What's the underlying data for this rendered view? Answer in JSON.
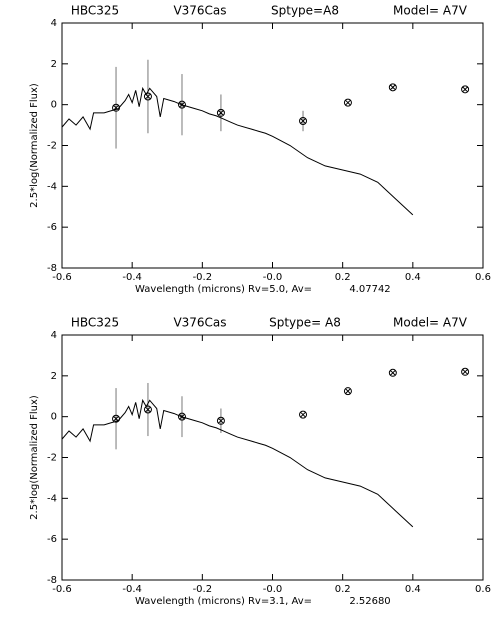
{
  "chart_data": [
    {
      "type": "scatter",
      "header": [
        "HBC325",
        "V376Cas",
        "Sptype=A8",
        "Model= A7V"
      ],
      "x_label": "Wavelength (microns)",
      "x_note": "Rv=5.0, Av=",
      "av": "4.07742",
      "y_label": "2.5*log(Normalized Flux)",
      "xlim": [
        -0.6,
        0.6
      ],
      "ylim": [
        -8,
        4
      ],
      "xticks": [
        -0.6,
        -0.4,
        -0.2,
        {
          "value": 0,
          "label": "-0.0"
        },
        0.2,
        0.4,
        0.6
      ],
      "yticks": [
        -8,
        -6,
        -4,
        -2,
        0,
        2,
        4
      ],
      "x": [
        -0.446,
        -0.355,
        -0.258,
        -0.147,
        0.087,
        0.215,
        0.343,
        0.549
      ],
      "values": [
        -0.15,
        0.4,
        0.0,
        -0.4,
        -0.8,
        0.1,
        0.85,
        0.75
      ],
      "yerr": [
        2.0,
        1.8,
        1.5,
        0.9,
        0.5,
        null,
        null,
        null
      ],
      "model": {
        "x": [
          -0.6,
          -0.58,
          -0.56,
          -0.54,
          -0.52,
          -0.51,
          -0.48,
          -0.46,
          -0.44,
          -0.42,
          -0.41,
          -0.4,
          -0.39,
          -0.38,
          -0.37,
          -0.36,
          -0.35,
          -0.34,
          -0.33,
          -0.32,
          -0.31,
          -0.28,
          -0.26,
          -0.22,
          -0.2,
          -0.18,
          -0.16,
          -0.14,
          -0.12,
          -0.1,
          -0.06,
          -0.04,
          -0.02,
          0.0,
          0.05,
          0.1,
          0.15,
          0.2,
          0.25,
          0.3,
          0.35,
          0.4
        ],
        "values": [
          -1.1,
          -0.7,
          -1.0,
          -0.6,
          -1.2,
          -0.4,
          -0.4,
          -0.3,
          -0.2,
          0.2,
          0.5,
          0.1,
          0.7,
          -0.1,
          0.8,
          0.5,
          0.8,
          0.6,
          0.4,
          -0.6,
          0.3,
          0.15,
          0.0,
          -0.2,
          -0.3,
          -0.45,
          -0.55,
          -0.7,
          -0.85,
          -1.0,
          -1.2,
          -1.3,
          -1.4,
          -1.55,
          -2.0,
          -2.6,
          -3.0,
          -3.2,
          -3.4,
          -3.8,
          -4.6,
          -5.4
        ]
      }
    },
    {
      "type": "scatter",
      "header": [
        "HBC325",
        "V376Cas",
        "Sptype= A8",
        "Model= A7V"
      ],
      "x_label": "Wavelength (microns)",
      "x_note": "Rv=3.1, Av=",
      "av": "2.52680",
      "y_label": "2.5*log(Normalized Flux)",
      "xlim": [
        -0.6,
        0.6
      ],
      "ylim": [
        -8,
        4
      ],
      "xticks": [
        -0.6,
        -0.4,
        -0.2,
        {
          "value": 0,
          "label": "-0.0"
        },
        0.2,
        0.4,
        0.6
      ],
      "yticks": [
        -8,
        -6,
        -4,
        -2,
        0,
        2,
        4
      ],
      "x": [
        -0.446,
        -0.355,
        -0.258,
        -0.147,
        0.087,
        0.215,
        0.343,
        0.549
      ],
      "values": [
        -0.1,
        0.35,
        0.0,
        -0.2,
        0.1,
        1.25,
        2.15,
        2.2
      ],
      "yerr": [
        1.5,
        1.3,
        1.0,
        0.6,
        null,
        null,
        null,
        null
      ],
      "model": {
        "x": [
          -0.6,
          -0.58,
          -0.56,
          -0.54,
          -0.52,
          -0.51,
          -0.48,
          -0.46,
          -0.44,
          -0.42,
          -0.41,
          -0.4,
          -0.39,
          -0.38,
          -0.37,
          -0.36,
          -0.35,
          -0.34,
          -0.33,
          -0.32,
          -0.31,
          -0.28,
          -0.26,
          -0.22,
          -0.2,
          -0.18,
          -0.16,
          -0.14,
          -0.12,
          -0.1,
          -0.06,
          -0.04,
          -0.02,
          0.0,
          0.05,
          0.1,
          0.15,
          0.2,
          0.25,
          0.3,
          0.35,
          0.4
        ],
        "values": [
          -1.1,
          -0.7,
          -1.0,
          -0.6,
          -1.2,
          -0.4,
          -0.4,
          -0.3,
          -0.2,
          0.2,
          0.5,
          0.1,
          0.7,
          -0.1,
          0.8,
          0.5,
          0.8,
          0.6,
          0.4,
          -0.6,
          0.3,
          0.15,
          0.0,
          -0.2,
          -0.3,
          -0.45,
          -0.55,
          -0.7,
          -0.85,
          -1.0,
          -1.2,
          -1.3,
          -1.4,
          -1.55,
          -2.0,
          -2.6,
          -3.0,
          -3.2,
          -3.4,
          -3.8,
          -4.6,
          -5.4
        ]
      }
    }
  ]
}
